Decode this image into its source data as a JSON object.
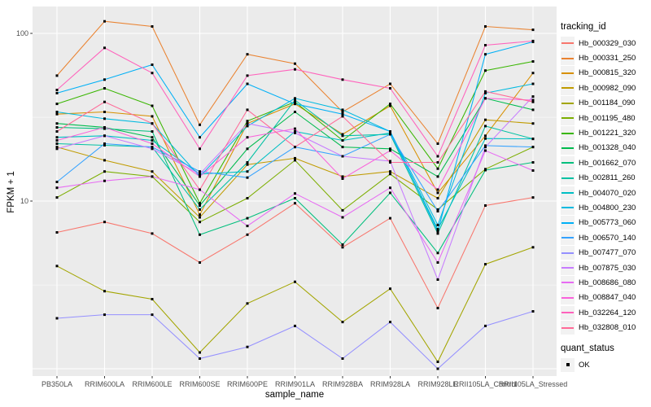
{
  "figure": {
    "y_axis": {
      "title": "FPKM + 1"
    },
    "x_axis": {
      "title": "sample_name"
    },
    "legend": {
      "tracking_title": "tracking_id",
      "quant_title": "quant_status",
      "quant_ok_label": "OK"
    },
    "colors": {
      "panel_bg": "#EBEBEB",
      "gridline": "#FFFFFF",
      "tick_label": "#4D4D4D",
      "point": "#000000"
    }
  },
  "chart_data": {
    "type": "line",
    "title": "",
    "xlabel": "sample_name",
    "ylabel": "FPKM + 1",
    "y_scale": "log10",
    "ylim": [
      1,
      130
    ],
    "y_tick_labels": [
      "100",
      "10"
    ],
    "y_tick_values": [
      100,
      10
    ],
    "grid": true,
    "legend_position": "right",
    "legend_titles": [
      "tracking_id",
      "quant_status"
    ],
    "quant_status": "OK",
    "point_marker": "filled-black-square",
    "categories": [
      "PB350LA",
      "RRIM600LA",
      "RRIM600LE",
      "RRIM600SE",
      "RRIM600PE",
      "RRIM901LA",
      "RRIM928BA",
      "RRIM928LA",
      "RRIM928LE",
      "RRII105LA_Control",
      "RRII105LA_Stressed"
    ],
    "series": [
      {
        "name": "Hb_000329_030",
        "color": "#F8766D",
        "values": [
          6.5,
          7.5,
          6.4,
          4.3,
          6.3,
          9.7,
          5.3,
          7.9,
          2.3,
          9.4,
          10.5
        ]
      },
      {
        "name": "Hb_000331_250",
        "color": "#EA8331",
        "values": [
          56,
          118,
          110,
          28.5,
          75,
          66,
          34,
          50,
          22,
          110,
          105
        ]
      },
      {
        "name": "Hb_000815_320",
        "color": "#D89000",
        "values": [
          33,
          34,
          32,
          8.3,
          29,
          38,
          25,
          37,
          11.2,
          24.5,
          58
        ]
      },
      {
        "name": "Hb_000982_090",
        "color": "#C09B00",
        "values": [
          21,
          17.5,
          15,
          8,
          16.5,
          18,
          14,
          15,
          10.4,
          30.5,
          29
        ]
      },
      {
        "name": "Hb_001184_090",
        "color": "#A3A500",
        "values": [
          4.1,
          2.9,
          2.6,
          1.25,
          2.45,
          3.3,
          1.9,
          3,
          1.1,
          4.2,
          5.3
        ]
      },
      {
        "name": "Hb_001195_480",
        "color": "#7CAE00",
        "values": [
          10.5,
          15,
          14,
          7.5,
          10.4,
          17.5,
          8.8,
          14.5,
          8.9,
          15.5,
          21
        ]
      },
      {
        "name": "Hb_001221_320",
        "color": "#39B600",
        "values": [
          38,
          47,
          37,
          9.7,
          30,
          39,
          23,
          38,
          15.6,
          60,
          68
        ]
      },
      {
        "name": "Hb_001328_040",
        "color": "#00BB4E",
        "values": [
          29,
          27.5,
          24,
          9.4,
          20.5,
          34,
          21,
          20.5,
          14,
          41,
          35
        ]
      },
      {
        "name": "Hb_001662_070",
        "color": "#00BF7D",
        "values": [
          27.5,
          27,
          26,
          6.3,
          7.9,
          10.4,
          5.5,
          11.2,
          4.9,
          15.3,
          17
        ]
      },
      {
        "name": "Hb_002811_260",
        "color": "#00C1A3",
        "values": [
          22,
          21.5,
          21,
          8.9,
          17,
          40,
          24.5,
          25,
          6.4,
          28,
          23.5
        ]
      },
      {
        "name": "Hb_004070_020",
        "color": "#00BFC4",
        "values": [
          24,
          24.5,
          23,
          14.5,
          15,
          26,
          23,
          25.5,
          6.8,
          23.6,
          23.5
        ]
      },
      {
        "name": "Hb_004800_230",
        "color": "#00BAE0",
        "values": [
          34,
          31,
          29,
          14,
          28,
          41,
          35,
          26,
          7.2,
          44,
          50
        ]
      },
      {
        "name": "Hb_005773_060",
        "color": "#00B0F6",
        "values": [
          44,
          53,
          65,
          24,
          50,
          38,
          33,
          26,
          6.6,
          75,
          89
        ]
      },
      {
        "name": "Hb_006570_140",
        "color": "#35A2FF",
        "values": [
          13,
          22,
          21,
          15,
          13.8,
          21,
          18.5,
          25,
          8.7,
          21.4,
          21
        ]
      },
      {
        "name": "Hb_007477_070",
        "color": "#9590FF",
        "values": [
          2,
          2.1,
          2.1,
          1.15,
          1.35,
          1.8,
          1.15,
          1.9,
          1,
          1.8,
          2.2
        ]
      },
      {
        "name": "Hb_007875_030",
        "color": "#C77CFF",
        "values": [
          20.5,
          24.5,
          20.5,
          14.5,
          29,
          25.5,
          18.5,
          17.3,
          3.4,
          21,
          42
        ]
      },
      {
        "name": "Hb_008686_080",
        "color": "#E76BF3",
        "values": [
          12,
          13.2,
          14,
          11.7,
          7.1,
          11.1,
          8,
          12,
          4.3,
          20,
          15.2
        ]
      },
      {
        "name": "Hb_008847_040",
        "color": "#FA62DB",
        "values": [
          23,
          27.5,
          22,
          14,
          24,
          27,
          13.6,
          20,
          11.7,
          41,
          40
        ]
      },
      {
        "name": "Hb_032264_120",
        "color": "#FF62BC",
        "values": [
          46,
          82,
          58,
          20.5,
          56,
          61,
          53,
          47,
          18.5,
          85,
          90
        ]
      },
      {
        "name": "Hb_032808_010",
        "color": "#FF6A98",
        "values": [
          26,
          39,
          29,
          11.7,
          35,
          21,
          32,
          17,
          17,
          45,
          39
        ]
      }
    ]
  }
}
